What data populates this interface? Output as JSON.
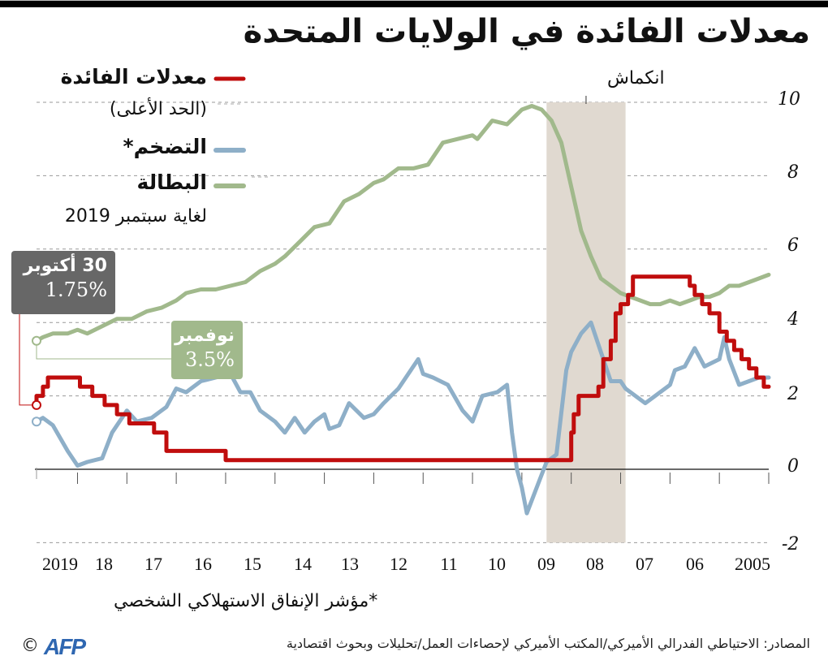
{
  "title": "معدلات الفائدة في الولايات المتحدة",
  "legend": {
    "items": [
      {
        "key": "rates",
        "label": "معدلات الفائدة",
        "sub": "(الحد الأعلى)",
        "color": "#c00d0d"
      },
      {
        "key": "inflation",
        "label": "التضخم*",
        "color": "#8eafc8"
      },
      {
        "key": "unemployment",
        "label": "البطالة",
        "sub": "لغاية سبتمبر 2019",
        "color": "#a1b98c"
      }
    ]
  },
  "callouts": {
    "rate": {
      "line1": "30 أكتوبر",
      "line2": "1.75%",
      "bg": "#676767"
    },
    "unemployment": {
      "line1": "نوفمبر",
      "line2": "3.5%",
      "bg": "#a1b98c"
    }
  },
  "recession_label": "انكماش",
  "footnote": "*مؤشر الإنفاق الاستهلاكي الشخصي",
  "source": "المصادر: الاحتياطي الفدرالي الأميركي/المكتب الأميركي لإحصاءات العمل/تحليلات وبحوث اقتصادية",
  "credit": {
    "copyright": "©",
    "logo": "AFP"
  },
  "y_ticks": [
    "10",
    "8",
    "6",
    "4",
    "2",
    "0",
    "-2"
  ],
  "x_ticks": [
    "2019",
    "18",
    "17",
    "16",
    "15",
    "14",
    "13",
    "12",
    "11",
    "10",
    "09",
    "08",
    "07",
    "06",
    "2005"
  ],
  "chart_data": {
    "type": "line",
    "title": "معدلات الفائدة في الولايات المتحدة",
    "xlabel": "",
    "ylabel": "%",
    "x_direction": "right-to-left (2005 at right, 2019 at left)",
    "ylim": [
      -2,
      10
    ],
    "y_ticks": [
      -2,
      0,
      2,
      4,
      6,
      8,
      10
    ],
    "x_ticks": [
      "2005",
      "06",
      "07",
      "08",
      "09",
      "10",
      "11",
      "12",
      "13",
      "14",
      "15",
      "16",
      "17",
      "18",
      "2019"
    ],
    "grid": "horizontal dashed",
    "legend_position": "top-left",
    "recession": {
      "label": "انكماش",
      "start": 2007.9,
      "end": 2009.5
    },
    "annotations": [
      {
        "text": "30 أكتوبر 1.75%",
        "series": "rates",
        "x": 2019.83,
        "y": 1.75
      },
      {
        "text": "نوفمبر 3.5%",
        "series": "unemployment",
        "x": 2019.83,
        "y": 3.5
      }
    ],
    "x": [
      2005.0,
      2005.5,
      2006.0,
      2006.5,
      2007.0,
      2007.5,
      2008.0,
      2008.5,
      2009.0,
      2009.5,
      2010.0,
      2010.5,
      2011.0,
      2011.5,
      2012.0,
      2012.5,
      2013.0,
      2013.5,
      2014.0,
      2014.5,
      2015.0,
      2015.5,
      2016.0,
      2016.5,
      2017.0,
      2017.5,
      2018.0,
      2018.5,
      2019.0,
      2019.5,
      2019.83
    ],
    "series": [
      {
        "name": "معدلات الفائدة (الحد الأعلى)",
        "key": "rates",
        "color": "#c00d0d",
        "values": [
          2.25,
          3.25,
          4.5,
          5.25,
          5.25,
          5.25,
          3.0,
          2.0,
          0.25,
          0.25,
          0.25,
          0.25,
          0.25,
          0.25,
          0.25,
          0.25,
          0.25,
          0.25,
          0.25,
          0.25,
          0.25,
          0.25,
          0.5,
          0.5,
          1.0,
          1.25,
          1.75,
          2.25,
          2.5,
          2.25,
          1.75
        ]
      },
      {
        "name": "التضخم*",
        "key": "inflation",
        "color": "#8eafc8",
        "values": [
          2.6,
          3.2,
          2.9,
          3.2,
          2.2,
          2.4,
          3.3,
          4.0,
          2.8,
          -1.2,
          2.1,
          1.4,
          2.1,
          2.9,
          2.4,
          1.4,
          1.3,
          1.3,
          1.8,
          1.4,
          0.2,
          0.2,
          0.9,
          1.0,
          1.8,
          1.5,
          2.0,
          2.3,
          1.4,
          1.4,
          1.3
        ]
      },
      {
        "name": "البطالة",
        "key": "unemployment",
        "color": "#a1b98c",
        "values": [
          5.3,
          5.0,
          4.7,
          4.6,
          4.5,
          4.7,
          5.0,
          6.0,
          8.3,
          9.5,
          9.8,
          9.4,
          9.0,
          9.0,
          8.2,
          8.2,
          7.9,
          7.3,
          6.6,
          6.1,
          5.6,
          5.2,
          4.9,
          4.9,
          4.6,
          4.3,
          4.1,
          3.9,
          3.8,
          3.7,
          3.5
        ]
      }
    ]
  }
}
